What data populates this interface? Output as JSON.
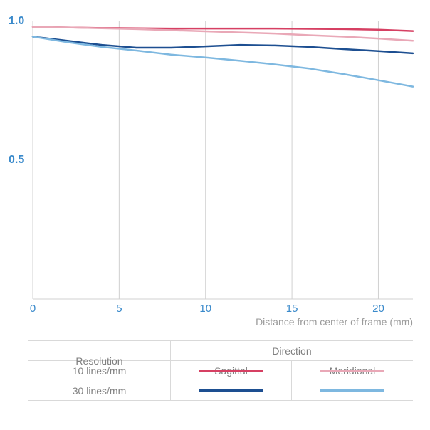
{
  "chart": {
    "type": "line",
    "background_color": "#ffffff",
    "grid_color": "#d0d0d0",
    "tick_color": "#3a8acb",
    "xlabel_color": "#9a9a9a",
    "xlabel": "Distance from center of frame (mm)",
    "xlabel_fontsize": 14,
    "xlim": [
      0,
      22
    ],
    "ylim": [
      0,
      1.0
    ],
    "xticks": [
      0,
      5,
      10,
      15,
      20
    ],
    "yticks": [
      0.5,
      1.0
    ],
    "ytick_labels": [
      "0.5",
      "1.0"
    ],
    "tick_fontsize": 15,
    "line_width": 2.5,
    "series": [
      {
        "id": "10-sagittal",
        "color": "#d64063",
        "points": [
          [
            0,
            0.98
          ],
          [
            2,
            0.978
          ],
          [
            4,
            0.976
          ],
          [
            6,
            0.975
          ],
          [
            8,
            0.974
          ],
          [
            10,
            0.974
          ],
          [
            12,
            0.974
          ],
          [
            14,
            0.974
          ],
          [
            16,
            0.973
          ],
          [
            18,
            0.972
          ],
          [
            20,
            0.97
          ],
          [
            22,
            0.965
          ]
        ]
      },
      {
        "id": "10-meridional",
        "color": "#e9a8b7",
        "points": [
          [
            0,
            0.98
          ],
          [
            2,
            0.978
          ],
          [
            4,
            0.975
          ],
          [
            6,
            0.972
          ],
          [
            8,
            0.968
          ],
          [
            10,
            0.964
          ],
          [
            12,
            0.96
          ],
          [
            14,
            0.956
          ],
          [
            16,
            0.95
          ],
          [
            18,
            0.945
          ],
          [
            20,
            0.938
          ],
          [
            22,
            0.93
          ]
        ]
      },
      {
        "id": "30-sagittal",
        "color": "#1d4f91",
        "points": [
          [
            0,
            0.945
          ],
          [
            2,
            0.93
          ],
          [
            4,
            0.915
          ],
          [
            6,
            0.905
          ],
          [
            8,
            0.905
          ],
          [
            10,
            0.91
          ],
          [
            12,
            0.915
          ],
          [
            14,
            0.913
          ],
          [
            16,
            0.908
          ],
          [
            18,
            0.9
          ],
          [
            20,
            0.893
          ],
          [
            22,
            0.885
          ]
        ]
      },
      {
        "id": "30-meridional",
        "color": "#7eb8e0",
        "points": [
          [
            0,
            0.945
          ],
          [
            2,
            0.925
          ],
          [
            4,
            0.908
          ],
          [
            6,
            0.895
          ],
          [
            8,
            0.88
          ],
          [
            10,
            0.87
          ],
          [
            12,
            0.858
          ],
          [
            14,
            0.845
          ],
          [
            16,
            0.83
          ],
          [
            18,
            0.81
          ],
          [
            20,
            0.788
          ],
          [
            22,
            0.765
          ]
        ]
      }
    ]
  },
  "legend": {
    "columns": {
      "resolution": "Resolution",
      "direction": "Direction",
      "sagittal": "Sagittal",
      "meridional": "Meridional"
    },
    "rows": [
      {
        "label": "10 lines/mm",
        "sag_color": "#d64063",
        "mer_color": "#e9a8b7"
      },
      {
        "label": "30 lines/mm",
        "sag_color": "#1d4f91",
        "mer_color": "#7eb8e0"
      }
    ],
    "border_color": "#d9d9d9",
    "text_color": "#808080",
    "fontsize": 14
  }
}
